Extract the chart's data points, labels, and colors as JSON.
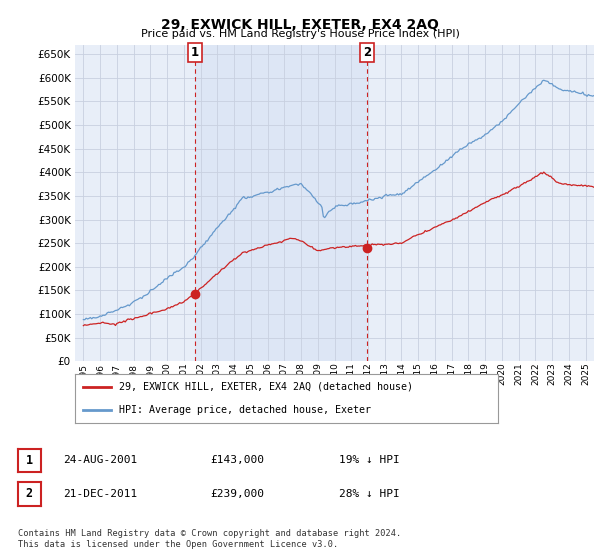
{
  "title": "29, EXWICK HILL, EXETER, EX4 2AQ",
  "subtitle": "Price paid vs. HM Land Registry's House Price Index (HPI)",
  "hpi_label": "HPI: Average price, detached house, Exeter",
  "price_label": "29, EXWICK HILL, EXETER, EX4 2AQ (detached house)",
  "sale1_date": "24-AUG-2001",
  "sale1_price": 143000,
  "sale1_pct": "19% ↓ HPI",
  "sale2_date": "21-DEC-2011",
  "sale2_price": 239000,
  "sale2_pct": "28% ↓ HPI",
  "sale1_x": 2001.65,
  "sale2_x": 2011.97,
  "footer": "Contains HM Land Registry data © Crown copyright and database right 2024.\nThis data is licensed under the Open Government Licence v3.0.",
  "ylim_bottom": 0,
  "ylim_top": 670000,
  "xlim_left": 1994.5,
  "xlim_right": 2025.5,
  "hpi_color": "#6699cc",
  "price_color": "#cc2222",
  "bg_color": "#e8eef8",
  "shade_color": "#dde6f5",
  "grid_color": "#c8d0e0"
}
